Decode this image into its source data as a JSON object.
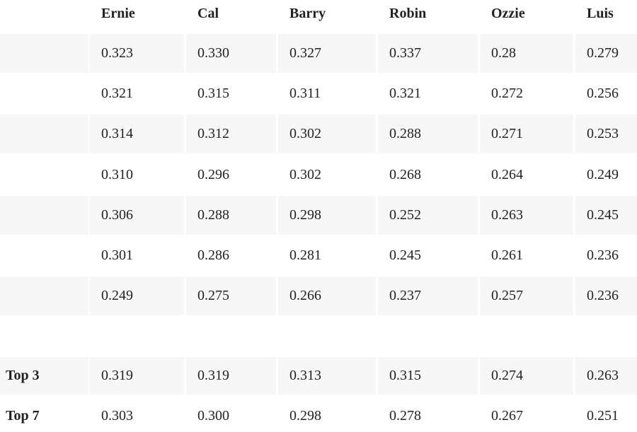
{
  "table": {
    "columns": [
      "Ernie",
      "Cal",
      "Barry",
      "Robin",
      "Ozzie",
      "Luis"
    ],
    "rows": [
      [
        "0.323",
        "0.330",
        "0.327",
        "0.337",
        "0.28",
        "0.279"
      ],
      [
        "0.321",
        "0.315",
        "0.311",
        "0.321",
        "0.272",
        "0.256"
      ],
      [
        "0.314",
        "0.312",
        "0.302",
        "0.288",
        "0.271",
        "0.253"
      ],
      [
        "0.310",
        "0.296",
        "0.302",
        "0.268",
        "0.264",
        "0.249"
      ],
      [
        "0.306",
        "0.288",
        "0.298",
        "0.252",
        "0.263",
        "0.245"
      ],
      [
        "0.301",
        "0.286",
        "0.281",
        "0.245",
        "0.261",
        "0.236"
      ],
      [
        "0.249",
        "0.275",
        "0.266",
        "0.237",
        "0.257",
        "0.236"
      ]
    ],
    "summary": [
      {
        "label": "Top 3",
        "values": [
          "0.319",
          "0.319",
          "0.313",
          "0.315",
          "0.274",
          "0.263"
        ]
      },
      {
        "label": "Top 7",
        "values": [
          "0.303",
          "0.300",
          "0.298",
          "0.278",
          "0.267",
          "0.251"
        ]
      }
    ]
  }
}
